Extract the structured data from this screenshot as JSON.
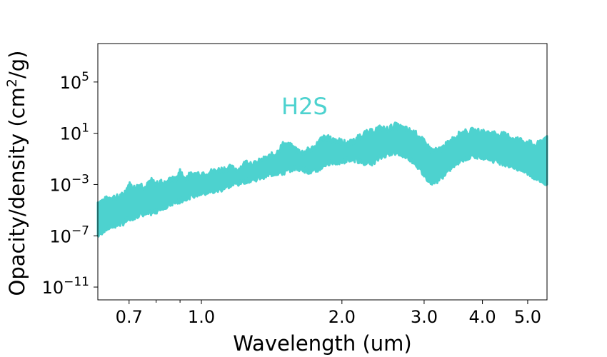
{
  "chart_data": {
    "type": "area",
    "xlabel": "Wavelength  (um)",
    "ylabel_text": "Opacity/density  (cm",
    "ylabel_sup": "2",
    "ylabel_tail": "/g)",
    "x_scale": "log",
    "y_scale": "log",
    "xlim": [
      0.6,
      5.5
    ],
    "ylim": [
      1e-12,
      100000000.0
    ],
    "grid": false,
    "x_major_ticks": [
      {
        "value": 0.7,
        "label": "0.7"
      },
      {
        "value": 1.0,
        "label": "1.0"
      },
      {
        "value": 2.0,
        "label": "2.0"
      },
      {
        "value": 3.0,
        "label": "3.0"
      },
      {
        "value": 4.0,
        "label": "4.0"
      },
      {
        "value": 5.0,
        "label": "5.0"
      }
    ],
    "x_minor_ticks": [
      0.8,
      0.9
    ],
    "y_ticks": [
      {
        "value": 1e-11,
        "base": "10",
        "exp": "−11"
      },
      {
        "value": 1e-07,
        "base": "10",
        "exp": "−7"
      },
      {
        "value": 0.001,
        "base": "10",
        "exp": "−3"
      },
      {
        "value": 10,
        "base": "10",
        "exp": "1"
      },
      {
        "value": 100000.0,
        "base": "10",
        "exp": "5"
      }
    ],
    "series": [
      {
        "name": "H2S",
        "color": "#4dd2cf",
        "x": [
          0.6,
          0.62,
          0.64,
          0.66,
          0.68,
          0.7,
          0.72,
          0.74,
          0.76,
          0.78,
          0.8,
          0.82,
          0.84,
          0.86,
          0.88,
          0.9,
          0.92,
          0.95,
          1.0,
          1.05,
          1.1,
          1.15,
          1.2,
          1.25,
          1.3,
          1.35,
          1.4,
          1.45,
          1.5,
          1.55,
          1.6,
          1.65,
          1.7,
          1.75,
          1.8,
          1.85,
          1.9,
          1.95,
          2.0,
          2.05,
          2.1,
          2.15,
          2.2,
          2.3,
          2.4,
          2.5,
          2.6,
          2.7,
          2.8,
          2.9,
          3.0,
          3.1,
          3.2,
          3.3,
          3.4,
          3.5,
          3.6,
          3.8,
          4.0,
          4.2,
          4.4,
          4.6,
          4.8,
          5.0,
          5.2,
          5.5
        ],
        "y_low": [
          1e-07,
          3e-07,
          5e-07,
          7e-07,
          1e-06,
          2e-06,
          3e-06,
          5e-06,
          5e-06,
          6e-06,
          8e-06,
          1.5e-05,
          2e-05,
          3e-05,
          4e-05,
          5e-05,
          8e-05,
          0.00012,
          0.0002,
          0.00025,
          0.0004,
          0.0008,
          0.0012,
          0.002,
          0.0025,
          0.004,
          0.006,
          0.008,
          0.008,
          0.015,
          0.02,
          0.015,
          0.01,
          0.01,
          0.02,
          0.04,
          0.06,
          0.05,
          0.06,
          0.08,
          0.1,
          0.08,
          0.06,
          0.04,
          0.1,
          0.25,
          0.3,
          0.2,
          0.1,
          0.03,
          0.005,
          0.0015,
          0.002,
          0.005,
          0.015,
          0.04,
          0.08,
          0.15,
          0.15,
          0.08,
          0.05,
          0.03,
          0.015,
          0.008,
          0.003,
          0.001
        ],
        "y_high": [
          4e-05,
          6e-05,
          0.0001,
          0.0001,
          0.00015,
          0.001,
          0.0005,
          0.001,
          0.0006,
          0.002,
          0.001,
          0.0015,
          0.001,
          0.003,
          0.002,
          0.01,
          0.003,
          0.006,
          0.008,
          0.01,
          0.015,
          0.02,
          0.015,
          0.06,
          0.04,
          0.08,
          0.15,
          0.3,
          1.5,
          1,
          0.5,
          0.3,
          0.5,
          0.8,
          3,
          5,
          3,
          3,
          2,
          1.5,
          2,
          3,
          8,
          12,
          25,
          20,
          40,
          25,
          15,
          8,
          2,
          0.5,
          0.4,
          0.8,
          2,
          5,
          10,
          15,
          12,
          10,
          8,
          5,
          3,
          2,
          1,
          6
        ]
      }
    ]
  }
}
